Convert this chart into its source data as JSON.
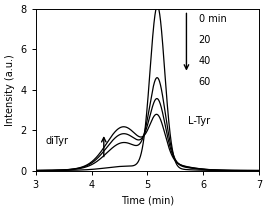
{
  "xlim": [
    3,
    7
  ],
  "ylim": [
    0,
    8
  ],
  "xlabel": "Time (min)",
  "ylabel": "Intensity (a.u.)",
  "xticks": [
    3,
    4,
    5,
    6,
    7
  ],
  "yticks": [
    0,
    2,
    4,
    6,
    8
  ],
  "background_color": "#ffffff",
  "line_color": "#000000",
  "legend_labels": [
    "0 min",
    "20",
    "40",
    "60"
  ],
  "diTyr_label": "diTyr",
  "lTyr_label": "L-Tyr",
  "curves": {
    "t0": {
      "lTyr_peak_x": 5.18,
      "lTyr_peak_y": 8.0,
      "lTyr_sigma": 0.13,
      "diTyr_peak_x": 4.55,
      "diTyr_peak_y": 0.08,
      "diTyr_sigma": 0.28,
      "base_peak_x": 4.85,
      "base_peak_y": 0.15,
      "base_sigma": 0.55
    },
    "t20": {
      "lTyr_peak_x": 5.18,
      "lTyr_peak_y": 4.1,
      "lTyr_sigma": 0.14,
      "diTyr_peak_x": 4.55,
      "diTyr_peak_y": 0.95,
      "diTyr_sigma": 0.28,
      "base_peak_x": 4.85,
      "base_peak_y": 0.5,
      "base_sigma": 0.55
    },
    "t40": {
      "lTyr_peak_x": 5.18,
      "lTyr_peak_y": 2.95,
      "lTyr_sigma": 0.14,
      "diTyr_peak_x": 4.55,
      "diTyr_peak_y": 1.3,
      "diTyr_sigma": 0.28,
      "base_peak_x": 4.85,
      "base_peak_y": 0.6,
      "base_sigma": 0.55
    },
    "t60": {
      "lTyr_peak_x": 5.18,
      "lTyr_peak_y": 2.1,
      "lTyr_sigma": 0.14,
      "diTyr_peak_x": 4.55,
      "diTyr_peak_y": 1.6,
      "diTyr_sigma": 0.28,
      "base_peak_x": 4.85,
      "base_peak_y": 0.65,
      "base_sigma": 0.55
    }
  },
  "fontsize": 7
}
